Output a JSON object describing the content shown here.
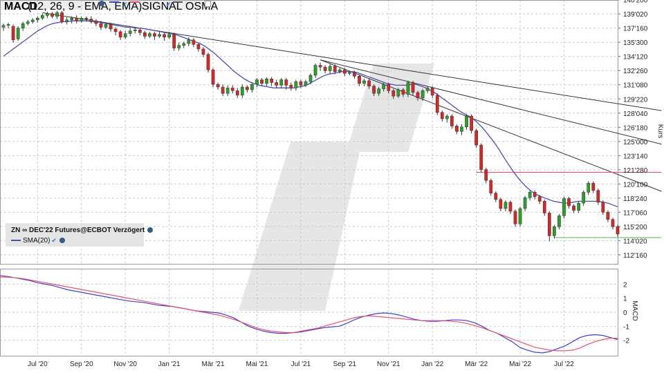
{
  "colors": {
    "up": "#2ca02c",
    "down": "#d62728",
    "sma": "#4a4fb5",
    "macd": "#3b3fd0",
    "signal": "#e8506a",
    "trendline": "#333333",
    "resistance": "#e8506a",
    "support": "#66bb66",
    "grid": "#c9c9c9"
  },
  "legend": {
    "instrument": "ZN ∞ DEC'22 Futures@ECBOT Verzögert",
    "sma": "SMA(20)"
  },
  "macd_legend": {
    "name": "MACD",
    "params": "(12, 26, 9 - EMA, EMA)",
    "signal": "SIGNAL",
    "osma": "OSMA"
  },
  "icons": [
    "gear-icon",
    "check-icon",
    "checkbox-icon"
  ],
  "chart_data": [
    {
      "type": "candlestick",
      "ylabel": "Kurs",
      "ylim": [
        111.5,
        140.6
      ],
      "y_ticks": [
        "140'200",
        "139'020",
        "137'160",
        "135'300",
        "134'120",
        "132'260",
        "131'080",
        "129'220",
        "128'040",
        "126'180",
        "125'000",
        "123'140",
        "121'280",
        "120'100",
        "118'240",
        "117'060",
        "115'200",
        "114'020",
        "112'160"
      ],
      "y_tick_values": [
        140.625,
        139.0625,
        137.5,
        135.9375,
        134.375,
        132.8125,
        131.25,
        129.6875,
        128.125,
        126.5625,
        125.0,
        123.4375,
        121.875,
        120.3125,
        118.75,
        117.1875,
        115.625,
        114.0625,
        112.5
      ],
      "x_ticks": [
        "Jul '20",
        "Sep '20",
        "Nov '20",
        "Jan '21",
        "Mär '21",
        "Mai '21",
        "Jul '21",
        "Sep '21",
        "Nov '21",
        "Jan '22",
        "Mär '22",
        "Mai '22",
        "Jul '22"
      ],
      "x_tick_index": [
        7,
        16,
        25,
        34,
        43,
        52,
        61,
        70,
        79,
        88,
        97,
        106,
        115
      ],
      "candles": [
        [
          137.6,
          137.8,
          137.2,
          138.0
        ],
        [
          137.8,
          137.9,
          137.5,
          138.1
        ],
        [
          137.7,
          136.2,
          135.9,
          137.9
        ],
        [
          136.3,
          137.5,
          136.1,
          137.7
        ],
        [
          137.5,
          138.0,
          137.2,
          138.2
        ],
        [
          138.0,
          138.2,
          137.8,
          138.4
        ],
        [
          138.2,
          138.4,
          138.0,
          138.6
        ],
        [
          138.4,
          138.6,
          138.1,
          138.8
        ],
        [
          138.6,
          138.9,
          138.4,
          139.1
        ],
        [
          138.9,
          139.1,
          138.6,
          139.3
        ],
        [
          139.1,
          138.8,
          138.6,
          139.3
        ],
        [
          138.8,
          139.2,
          138.5,
          139.4
        ],
        [
          139.2,
          138.2,
          138.0,
          139.4
        ],
        [
          138.2,
          138.4,
          137.9,
          138.7
        ],
        [
          138.4,
          138.6,
          138.0,
          138.8
        ],
        [
          138.6,
          138.3,
          138.0,
          138.9
        ],
        [
          138.3,
          138.6,
          138.1,
          138.8
        ],
        [
          138.6,
          138.5,
          138.2,
          138.8
        ],
        [
          138.5,
          138.3,
          138.0,
          138.8
        ],
        [
          138.3,
          138.0,
          137.7,
          138.5
        ],
        [
          138.0,
          137.6,
          137.3,
          138.3
        ],
        [
          137.6,
          137.9,
          137.4,
          138.1
        ],
        [
          137.9,
          137.4,
          137.1,
          138.1
        ],
        [
          137.4,
          137.1,
          136.7,
          137.6
        ],
        [
          137.1,
          136.5,
          136.2,
          137.3
        ],
        [
          136.5,
          136.9,
          136.3,
          137.2
        ],
        [
          136.9,
          137.2,
          136.6,
          137.5
        ],
        [
          137.2,
          137.3,
          136.9,
          137.6
        ],
        [
          137.3,
          137.0,
          136.7,
          137.5
        ],
        [
          137.0,
          136.6,
          136.3,
          137.2
        ],
        [
          136.6,
          136.9,
          136.4,
          137.1
        ],
        [
          136.9,
          136.6,
          136.2,
          137.1
        ],
        [
          136.6,
          136.8,
          136.4,
          137.1
        ],
        [
          136.8,
          136.5,
          136.1,
          137.0
        ],
        [
          136.5,
          136.8,
          136.3,
          137.1
        ],
        [
          136.8,
          135.3,
          135.0,
          137.0
        ],
        [
          135.3,
          135.6,
          135.0,
          135.9
        ],
        [
          135.6,
          135.8,
          135.3,
          136.0
        ],
        [
          135.8,
          136.2,
          135.5,
          136.5
        ],
        [
          136.2,
          135.7,
          135.4,
          136.4
        ],
        [
          135.7,
          135.2,
          134.9,
          135.9
        ],
        [
          135.2,
          134.6,
          134.3,
          135.4
        ],
        [
          134.6,
          132.9,
          132.6,
          134.8
        ],
        [
          132.9,
          131.3,
          131.0,
          133.1
        ],
        [
          131.3,
          131.0,
          130.7,
          131.5
        ],
        [
          131.0,
          130.3,
          130.0,
          131.3
        ],
        [
          130.3,
          130.9,
          130.0,
          131.2
        ],
        [
          130.9,
          130.6,
          130.3,
          131.2
        ],
        [
          130.6,
          130.1,
          129.8,
          130.9
        ],
        [
          130.1,
          131.0,
          129.8,
          131.3
        ],
        [
          131.0,
          130.7,
          130.4,
          131.2
        ],
        [
          130.7,
          131.3,
          130.4,
          131.5
        ],
        [
          131.3,
          131.8,
          131.0,
          132.0
        ],
        [
          131.8,
          131.4,
          131.1,
          132.0
        ],
        [
          131.4,
          131.9,
          131.1,
          132.1
        ],
        [
          131.9,
          131.5,
          131.1,
          132.1
        ],
        [
          131.5,
          131.2,
          130.9,
          131.8
        ],
        [
          131.2,
          131.8,
          130.9,
          132.0
        ],
        [
          131.8,
          131.2,
          130.7,
          132.0
        ],
        [
          131.2,
          130.9,
          130.6,
          131.5
        ],
        [
          130.9,
          131.6,
          130.6,
          131.8
        ],
        [
          131.6,
          131.2,
          130.9,
          131.8
        ],
        [
          131.2,
          131.6,
          131.0,
          131.8
        ],
        [
          131.6,
          132.3,
          131.3,
          132.5
        ],
        [
          132.3,
          133.4,
          132.0,
          133.6
        ],
        [
          133.4,
          133.2,
          132.8,
          133.7
        ],
        [
          133.2,
          132.8,
          132.5,
          133.4
        ],
        [
          132.8,
          133.3,
          132.5,
          133.6
        ],
        [
          133.3,
          132.7,
          132.4,
          133.5
        ],
        [
          132.7,
          132.9,
          132.5,
          133.1
        ],
        [
          132.9,
          132.5,
          132.2,
          133.1
        ],
        [
          132.5,
          132.6,
          132.3,
          132.8
        ],
        [
          132.6,
          132.2,
          131.9,
          132.8
        ],
        [
          132.2,
          131.4,
          131.1,
          132.4
        ],
        [
          131.4,
          131.7,
          131.1,
          131.9
        ],
        [
          131.7,
          131.1,
          130.8,
          131.9
        ],
        [
          131.1,
          130.3,
          130.0,
          131.3
        ],
        [
          130.3,
          130.8,
          130.0,
          131.0
        ],
        [
          130.8,
          131.3,
          130.5,
          131.5
        ],
        [
          131.3,
          130.6,
          130.3,
          131.5
        ],
        [
          130.6,
          130.0,
          129.7,
          130.8
        ],
        [
          130.0,
          130.7,
          129.8,
          130.9
        ],
        [
          130.7,
          130.2,
          129.9,
          130.9
        ],
        [
          130.2,
          131.5,
          129.9,
          131.7
        ],
        [
          131.5,
          130.4,
          130.1,
          131.7
        ],
        [
          130.4,
          129.8,
          129.5,
          130.6
        ],
        [
          129.8,
          130.6,
          129.5,
          130.8
        ],
        [
          130.6,
          130.9,
          130.3,
          131.1
        ],
        [
          130.9,
          130.1,
          129.8,
          131.1
        ],
        [
          130.1,
          128.2,
          127.9,
          130.3
        ],
        [
          128.2,
          127.5,
          127.2,
          128.4
        ],
        [
          127.5,
          127.8,
          127.1,
          128.0
        ],
        [
          127.8,
          126.7,
          126.4,
          128.0
        ],
        [
          126.7,
          126.1,
          125.8,
          126.9
        ],
        [
          126.1,
          126.6,
          125.7,
          126.9
        ],
        [
          126.6,
          127.8,
          126.3,
          128.0
        ],
        [
          127.8,
          126.2,
          125.9,
          128.0
        ],
        [
          126.2,
          124.6,
          124.3,
          126.4
        ],
        [
          124.6,
          121.9,
          121.6,
          124.8
        ],
        [
          121.9,
          120.7,
          120.4,
          122.1
        ],
        [
          120.7,
          119.3,
          119.0,
          120.9
        ],
        [
          119.3,
          118.6,
          118.3,
          119.5
        ],
        [
          118.6,
          117.6,
          117.3,
          118.8
        ],
        [
          117.6,
          118.3,
          117.3,
          118.5
        ],
        [
          118.3,
          117.3,
          117.0,
          118.5
        ],
        [
          117.3,
          115.9,
          115.6,
          117.5
        ],
        [
          115.9,
          117.6,
          115.6,
          117.8
        ],
        [
          117.6,
          118.8,
          117.3,
          119.0
        ],
        [
          118.8,
          119.4,
          118.5,
          119.6
        ],
        [
          119.4,
          118.9,
          118.6,
          119.6
        ],
        [
          118.9,
          118.4,
          118.1,
          119.1
        ],
        [
          118.4,
          117.1,
          116.8,
          118.6
        ],
        [
          117.1,
          114.6,
          114.0,
          117.3
        ],
        [
          114.6,
          115.6,
          114.3,
          115.8
        ],
        [
          115.6,
          116.8,
          115.3,
          117.0
        ],
        [
          116.8,
          118.7,
          116.5,
          118.9
        ],
        [
          118.7,
          117.9,
          117.6,
          118.9
        ],
        [
          117.9,
          117.4,
          117.1,
          118.1
        ],
        [
          117.4,
          118.2,
          117.1,
          118.4
        ],
        [
          118.2,
          119.4,
          117.9,
          119.6
        ],
        [
          119.4,
          120.4,
          119.1,
          120.6
        ],
        [
          120.4,
          119.6,
          119.3,
          120.6
        ],
        [
          119.6,
          118.3,
          118.0,
          119.8
        ],
        [
          118.3,
          117.2,
          116.9,
          118.5
        ],
        [
          117.2,
          116.4,
          116.1,
          117.4
        ],
        [
          116.4,
          115.6,
          115.3,
          116.6
        ],
        [
          115.6,
          114.8,
          114.5,
          115.8
        ]
      ],
      "sma": [
        134.4,
        134.8,
        135.2,
        135.6,
        136.0,
        136.4,
        136.8,
        137.2,
        137.5,
        137.8,
        138.0,
        138.1,
        138.2,
        138.2,
        138.3,
        138.3,
        138.3,
        138.3,
        138.2,
        138.2,
        138.1,
        138.0,
        137.9,
        137.8,
        137.7,
        137.6,
        137.6,
        137.5,
        137.5,
        137.4,
        137.3,
        137.2,
        137.1,
        137.0,
        136.9,
        136.8,
        136.6,
        136.4,
        136.2,
        136.0,
        135.8,
        135.5,
        135.1,
        134.7,
        134.2,
        133.7,
        133.2,
        132.7,
        132.3,
        131.9,
        131.6,
        131.4,
        131.2,
        131.1,
        131.0,
        130.9,
        130.9,
        130.9,
        130.9,
        130.9,
        131.0,
        131.1,
        131.3,
        131.6,
        131.9,
        132.2,
        132.4,
        132.5,
        132.6,
        132.7,
        132.7,
        132.7,
        132.6,
        132.4,
        132.2,
        132.0,
        131.8,
        131.6,
        131.4,
        131.3,
        131.2,
        131.2,
        131.2,
        131.3,
        131.3,
        131.1,
        130.9,
        130.6,
        130.3,
        129.9,
        129.5,
        129.1,
        128.7,
        128.3,
        128.0,
        127.7,
        127.3,
        126.8,
        126.2,
        125.5,
        124.8,
        124.0,
        123.1,
        122.3,
        121.5,
        120.8,
        120.2,
        119.7,
        119.3,
        119.0,
        118.8,
        118.6,
        118.4,
        118.3,
        118.2,
        118.2,
        118.3,
        118.4,
        118.4,
        118.4,
        118.4,
        118.4,
        118.3,
        118.2,
        118.0,
        117.8
      ],
      "trendlines": [
        {
          "from": [
            8,
            139.2
          ],
          "to": [
            135,
            128.4
          ]
        },
        {
          "from": [
            65,
            134.0
          ],
          "to": [
            135,
            124.7
          ]
        },
        {
          "from": [
            65,
            134.0
          ],
          "to": [
            135,
            119.5
          ]
        }
      ],
      "horizontal_lines": [
        {
          "kind": "resistance",
          "y": 121.6,
          "from": 97,
          "to": 135
        },
        {
          "kind": "support",
          "y": 114.4,
          "from": 113,
          "to": 135
        }
      ]
    },
    {
      "type": "line",
      "ylabel": "MACD",
      "ylim": [
        -3.1,
        3.1
      ],
      "y_ticks": [
        "2",
        "1",
        "0",
        "-1",
        "-2"
      ],
      "y_tick_values": [
        2,
        1,
        0,
        -1,
        -2
      ],
      "series": [
        {
          "name": "MACD",
          "values": [
            2.6,
            2.55,
            2.45,
            2.35,
            2.25,
            2.1,
            2.0,
            1.9,
            1.75,
            1.6,
            1.5,
            1.4,
            1.3,
            1.2,
            1.1,
            1.0,
            0.9,
            0.8,
            0.75,
            0.7,
            0.6,
            0.5,
            0.45,
            0.4,
            0.3,
            0.2,
            0.1,
            0.05,
            0.0,
            -0.05,
            -0.2,
            -0.4,
            -0.7,
            -1.0,
            -1.2,
            -1.35,
            -1.45,
            -1.5,
            -1.5,
            -1.45,
            -1.4,
            -1.3,
            -1.2,
            -1.1,
            -1.05,
            -1.0,
            -0.8,
            -0.55,
            -0.35,
            -0.2,
            -0.1,
            -0.05,
            -0.1,
            -0.2,
            -0.35,
            -0.5,
            -0.6,
            -0.65,
            -0.65,
            -0.6,
            -0.55,
            -0.55,
            -0.6,
            -0.75,
            -1.0,
            -1.3,
            -1.5,
            -1.8,
            -2.1,
            -2.5,
            -2.7,
            -2.85,
            -2.9,
            -2.8,
            -2.6,
            -2.4,
            -2.1,
            -1.8,
            -1.65,
            -1.6,
            -1.65,
            -1.8,
            -1.95
          ]
        },
        {
          "name": "SIGNAL",
          "values": [
            2.5,
            2.5,
            2.45,
            2.4,
            2.3,
            2.2,
            2.1,
            2.0,
            1.9,
            1.8,
            1.7,
            1.6,
            1.5,
            1.4,
            1.3,
            1.2,
            1.1,
            1.0,
            0.9,
            0.8,
            0.7,
            0.6,
            0.5,
            0.4,
            0.3,
            0.2,
            0.1,
            0.0,
            -0.1,
            -0.2,
            -0.35,
            -0.5,
            -0.7,
            -0.9,
            -1.1,
            -1.25,
            -1.35,
            -1.4,
            -1.45,
            -1.45,
            -1.35,
            -1.25,
            -1.15,
            -1.0,
            -0.85,
            -0.7,
            -0.55,
            -0.4,
            -0.3,
            -0.25,
            -0.3,
            -0.35,
            -0.4,
            -0.45,
            -0.5,
            -0.55,
            -0.6,
            -0.6,
            -0.6,
            -0.6,
            -0.65,
            -0.7,
            -0.8,
            -0.95,
            -1.1,
            -1.3,
            -1.5,
            -1.7,
            -1.9,
            -2.1,
            -2.3,
            -2.5,
            -2.6,
            -2.7,
            -2.75,
            -2.75,
            -2.7,
            -2.55,
            -2.3,
            -2.1,
            -1.95,
            -1.85,
            -1.85
          ]
        }
      ]
    }
  ]
}
